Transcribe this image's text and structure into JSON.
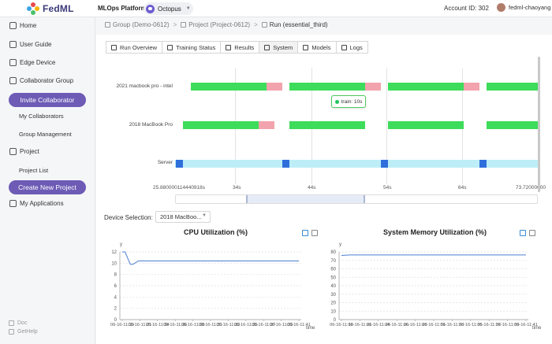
{
  "topbar": {
    "logo_text": "FedML",
    "platform": "MLOps Platform",
    "project": "Octopus",
    "account": "Account ID: 302",
    "user": "fedml-chaoyang"
  },
  "sidebar": {
    "home": "Home",
    "user_guide": "User Guide",
    "edge_device": "Edge Device",
    "collaborator_group": "Collaborator Group",
    "invite_btn": "Invite Collaborator",
    "my_collaborators": "My Collaborators",
    "group_management": "Group Management",
    "project": "Project",
    "project_list": "Project List",
    "create_project_btn": "Create New Project",
    "my_applications": "My Applications",
    "doc": "Doc",
    "gethelp": "GetHelp"
  },
  "breadcrumb": {
    "group": "Group (Demo-0612)",
    "project": "Project (Project-0612)",
    "run": "Run (essential_third)"
  },
  "tabs": [
    "Run Overview",
    "Training Status",
    "Results",
    "System",
    "Models",
    "Logs"
  ],
  "active_tab": "System",
  "timeline": {
    "rows": [
      "2021 macbook pro - intel",
      "2018 MacBook Pro",
      "Server"
    ],
    "tick_labels": [
      "25.880000114440918s",
      "34s",
      "44s",
      "54s",
      "64s",
      "73.72000000"
    ],
    "tooltip": "train: 10s"
  },
  "device_selection": {
    "label": "Device Selection:",
    "value": "2018 MacBoo..."
  },
  "colors": {
    "train": "#3ddc5a",
    "aggregate": "#f2a3ad",
    "server_idle": "#bdeef7",
    "server_busy": "#2f6fdc",
    "accent": "#6d5bb5",
    "line": "#4a7fd4"
  },
  "cpu_chart": {
    "title": "CPU Utilization (%)",
    "y_label": "y",
    "x_label": "time",
    "y_ticks": [
      "12",
      "10",
      "8",
      "6",
      "4",
      "2",
      "0"
    ],
    "x_ticks": [
      "06-16-11:19",
      "06-16-11:21",
      "06-16-11:24",
      "06-16-11:26",
      "06-16-11:28",
      "06-16-11:31",
      "06-16-11:33",
      "06-16-11:35",
      "06-16-11:37",
      "06-16-11:39",
      "06-16-11:41"
    ]
  },
  "mem_chart": {
    "title": "System Memory Utilization (%)",
    "y_label": "y",
    "x_label": "time",
    "y_ticks": [
      "80",
      "70",
      "60",
      "50",
      "40",
      "30",
      "20",
      "10",
      "0"
    ],
    "x_ticks": [
      "06-16-11:19",
      "06-16-11:21",
      "06-16-11:24",
      "06-16-11:26",
      "06-16-11:28",
      "06-16-11:31",
      "06-16-11:33",
      "06-16-11:35",
      "06-16-11:37",
      "06-16-11:39",
      "06-16-11:41"
    ]
  },
  "chart_data": [
    {
      "type": "line",
      "title": "CPU Utilization (%)",
      "xlabel": "time",
      "ylabel": "y",
      "ylim": [
        0,
        12
      ],
      "x": [
        "06-16-11:19",
        "06-16-11:19",
        "06-16-11:20",
        "06-16-11:20",
        "06-16-11:21",
        "06-16-11:41"
      ],
      "series": [
        {
          "values": [
            12,
            12,
            9.8,
            9.8,
            10.4,
            10.4
          ]
        }
      ]
    },
    {
      "type": "line",
      "title": "System Memory Utilization (%)",
      "xlabel": "time",
      "ylabel": "y",
      "ylim": [
        0,
        80
      ],
      "x": [
        "06-16-11:19",
        "06-16-11:20",
        "06-16-11:41"
      ],
      "series": [
        {
          "values": [
            75.8,
            76.4,
            76.4
          ]
        }
      ]
    }
  ]
}
